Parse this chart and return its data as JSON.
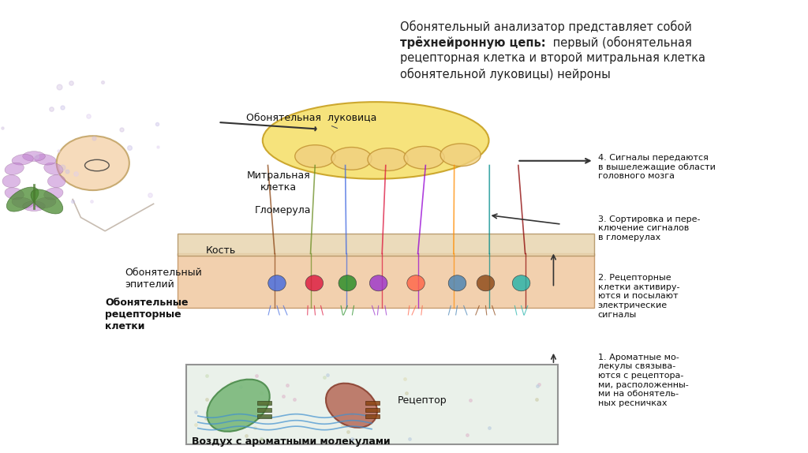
{
  "background_color": "#ffffff",
  "title_line1": "Обонятельный анализатор представляет собой",
  "title_line2_bold": "трёхнейронную цепь:",
  "title_line2_normal": " первый (обонятельная",
  "title_line3": "рецепторная клетка и второй митральная клетка",
  "title_line4": "обонятельной луковицы) нейроны",
  "label_bulb": "Обонятельная  луковица",
  "label_mitral": "Митральная\nклетка",
  "label_glomerula": "Гломерула",
  "label_bone": "Кость",
  "label_epithelium": "Обонятельный\nэпителий",
  "label_receptor_cells": "Обонятельные\nрецепторные\nклетки",
  "label_receptor": "Рецептор",
  "label_air": "Воздух с ароматными молекулами",
  "label_4": "4. Сигналы передаются\nв вышележащие области\nголовного мозга",
  "label_3": "3. Сортировка и пере-\nключение сигналов\nв гломерулах",
  "label_2": "2. Рецепторные\nклетки активиру-\nются и посылают\nэлектрические\nсигналы",
  "label_1": "1. Ароматные мо-\nлекулы связыва-\nются с рецептора-\nми, расположенны-\nми на обонятель-\nных ресничках",
  "bulb_color": "#f5e06e",
  "bulb_edge": "#c8a020",
  "epithelium_color": "#f0c8a0",
  "bone_color": "#e8d5b0",
  "inset_color": "#e8f0e8",
  "fiber_colors": [
    "#8B4513",
    "#6B8E23",
    "#4169E1",
    "#DC143C",
    "#9400D3",
    "#FF8C00",
    "#008B8B",
    "#8B0000"
  ],
  "cell_colors": [
    "#4169E1",
    "#DC143C",
    "#228B22",
    "#9932CC",
    "#FF6347",
    "#4682B4",
    "#8B4513",
    "#20B2AA"
  ]
}
